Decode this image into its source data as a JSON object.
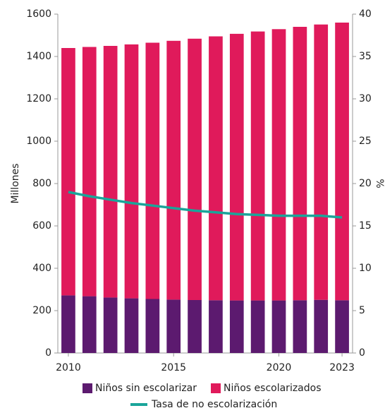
{
  "chart_data": {
    "type": "stacked_bar_line",
    "y_label": "Millones",
    "y2_label": "%",
    "categories": [
      "2010",
      null,
      null,
      null,
      null,
      "2015",
      null,
      null,
      null,
      null,
      "2020",
      null,
      null,
      "2023"
    ],
    "series": [
      {
        "name": "Niños sin escolarizar",
        "color": "#5c1a6f",
        "values": [
          272,
          268,
          262,
          258,
          255,
          252,
          250,
          249,
          248,
          248,
          248,
          249,
          251,
          249
        ]
      },
      {
        "name": "Niños escolarizados",
        "color": "#e01a5b",
        "values": [
          1168,
          1177,
          1188,
          1199,
          1210,
          1222,
          1234,
          1246,
          1259,
          1270,
          1281,
          1291,
          1300,
          1311
        ]
      },
      {
        "name": "Tasa de no escolarización",
        "color": "#1aa59a",
        "axis": "y2",
        "values": [
          19,
          18.5,
          18.1,
          17.7,
          17.4,
          17.1,
          16.8,
          16.6,
          16.4,
          16.3,
          16.2,
          16.2,
          16.2,
          16.0
        ]
      }
    ],
    "ylim": [
      0,
      1600
    ],
    "yticks": [
      0,
      200,
      400,
      600,
      800,
      1000,
      1200,
      1400,
      1600
    ],
    "y2lim": [
      0,
      40
    ],
    "y2ticks": [
      0,
      5,
      10,
      15,
      20,
      25,
      30,
      35,
      40
    ]
  }
}
